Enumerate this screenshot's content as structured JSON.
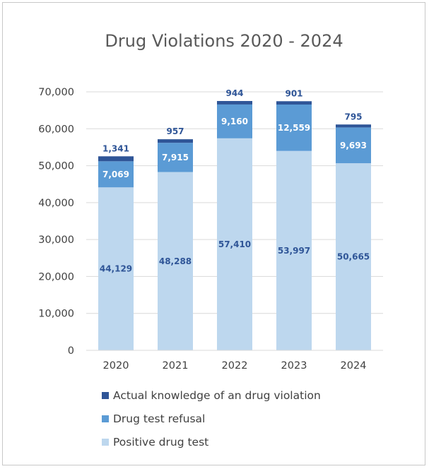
{
  "chart_data": {
    "type": "bar",
    "stacked": true,
    "title": "Drug Violations 2020 - 2024",
    "xlabel": "",
    "ylabel": "",
    "categories": [
      "2020",
      "2021",
      "2022",
      "2023",
      "2024"
    ],
    "ylim": [
      0,
      70000
    ],
    "yticks": [
      0,
      10000,
      20000,
      30000,
      40000,
      50000,
      60000,
      70000
    ],
    "ytick_labels": [
      "0",
      "10,000",
      "20,000",
      "30,000",
      "40,000",
      "50,000",
      "60,000",
      "70,000"
    ],
    "grid": true,
    "legend_position": "bottom",
    "series": [
      {
        "name": "Positive drug test",
        "color": "#bdd7ee",
        "label_color": "#2f5597",
        "values": [
          44129,
          48288,
          57410,
          53997,
          50665
        ],
        "labels": [
          "44,129",
          "48,288",
          "57,410",
          "53,997",
          "50,665"
        ]
      },
      {
        "name": "Drug test refusal",
        "color": "#5b9bd5",
        "label_color": "#ffffff",
        "values": [
          7069,
          7915,
          9160,
          12559,
          9693
        ],
        "labels": [
          "7,069",
          "7,915",
          "9,160",
          "12,559",
          "9,693"
        ]
      },
      {
        "name": "Actual knowledge of an drug violation",
        "color": "#2f5597",
        "label_color": "#2f5597",
        "values": [
          1341,
          957,
          944,
          901,
          795
        ],
        "labels": [
          "1,341",
          "957",
          "944",
          "901",
          "795"
        ]
      }
    ],
    "legend_order": [
      2,
      1,
      0
    ]
  }
}
